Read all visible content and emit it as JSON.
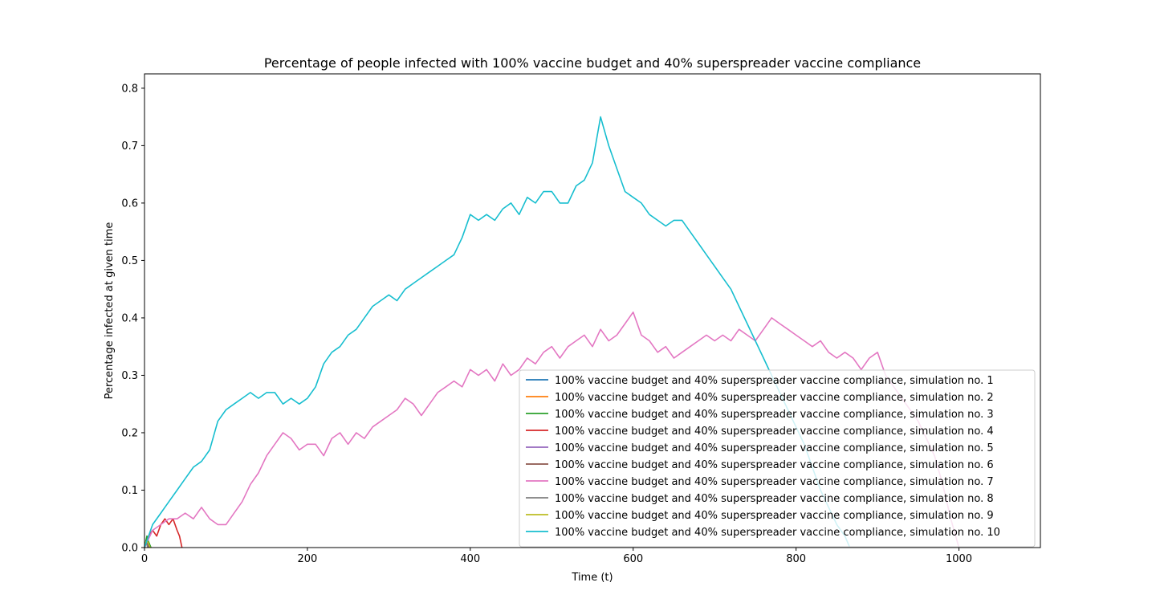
{
  "chart_data": {
    "type": "line",
    "title": "Percentage of people infected with 100% vaccine budget and 40% superspreader vaccine compliance",
    "xlabel": "Time (t)",
    "ylabel": "Percentage infected at given time",
    "xlim": [
      0,
      1100
    ],
    "ylim": [
      0,
      0.825
    ],
    "xticks": [
      "0",
      "200",
      "400",
      "600",
      "800",
      "1000"
    ],
    "xtick_values": [
      0,
      200,
      400,
      600,
      800,
      1000
    ],
    "yticks": [
      "0.0",
      "0.1",
      "0.2",
      "0.3",
      "0.4",
      "0.5",
      "0.6",
      "0.7",
      "0.8"
    ],
    "ytick_values": [
      0,
      0.1,
      0.2,
      0.3,
      0.4,
      0.5,
      0.6,
      0.7,
      0.8
    ],
    "grid": false,
    "legend_position": "lower-right",
    "series": [
      {
        "name": "100% vaccine budget and 40% superspreader vaccine compliance, simulation no. 1",
        "color": "#1f77b4",
        "x": [
          0,
          2,
          4,
          6
        ],
        "y": [
          0.0,
          0.01,
          0.01,
          0.0
        ]
      },
      {
        "name": "100% vaccine budget and 40% superspreader vaccine compliance, simulation no. 2",
        "color": "#ff7f0e",
        "x": [
          0,
          2,
          4,
          5
        ],
        "y": [
          0.0,
          0.01,
          0.01,
          0.0
        ]
      },
      {
        "name": "100% vaccine budget and 40% superspreader vaccine compliance, simulation no. 3",
        "color": "#2ca02c",
        "x": [
          0,
          3,
          5,
          8
        ],
        "y": [
          0.0,
          0.02,
          0.01,
          0.0
        ]
      },
      {
        "name": "100% vaccine budget and 40% superspreader vaccine compliance, simulation no. 4",
        "color": "#d62728",
        "x": [
          0,
          5,
          10,
          15,
          20,
          25,
          30,
          35,
          40,
          43,
          46
        ],
        "y": [
          0.0,
          0.02,
          0.03,
          0.02,
          0.04,
          0.05,
          0.04,
          0.05,
          0.03,
          0.02,
          0.0
        ]
      },
      {
        "name": "100% vaccine budget and 40% superspreader vaccine compliance, simulation no. 5",
        "color": "#9467bd",
        "x": [
          0,
          2,
          4
        ],
        "y": [
          0.0,
          0.01,
          0.0
        ]
      },
      {
        "name": "100% vaccine budget and 40% superspreader vaccine compliance, simulation no. 6",
        "color": "#8c564b",
        "x": [
          0,
          3,
          6
        ],
        "y": [
          0.0,
          0.01,
          0.0
        ]
      },
      {
        "name": "100% vaccine budget and 40% superspreader vaccine compliance, simulation no. 7",
        "color": "#e377c2",
        "x": [
          0,
          10,
          20,
          30,
          40,
          50,
          60,
          70,
          80,
          90,
          100,
          110,
          120,
          130,
          140,
          150,
          160,
          170,
          180,
          190,
          200,
          210,
          220,
          230,
          240,
          250,
          260,
          270,
          280,
          290,
          300,
          310,
          320,
          330,
          340,
          350,
          360,
          370,
          380,
          390,
          400,
          410,
          420,
          430,
          440,
          450,
          460,
          470,
          480,
          490,
          500,
          510,
          520,
          530,
          540,
          550,
          560,
          570,
          580,
          590,
          600,
          610,
          620,
          630,
          640,
          650,
          660,
          670,
          680,
          690,
          700,
          710,
          720,
          730,
          740,
          750,
          760,
          770,
          780,
          790,
          800,
          810,
          820,
          830,
          840,
          850,
          860,
          870,
          880,
          890,
          900,
          910,
          920,
          930,
          940,
          950,
          960,
          970,
          980,
          990,
          1000
        ],
        "y": [
          0.0,
          0.03,
          0.04,
          0.05,
          0.05,
          0.06,
          0.05,
          0.07,
          0.05,
          0.04,
          0.04,
          0.06,
          0.08,
          0.11,
          0.13,
          0.16,
          0.18,
          0.2,
          0.19,
          0.17,
          0.18,
          0.18,
          0.16,
          0.19,
          0.2,
          0.18,
          0.2,
          0.19,
          0.21,
          0.22,
          0.23,
          0.24,
          0.26,
          0.25,
          0.23,
          0.25,
          0.27,
          0.28,
          0.29,
          0.28,
          0.31,
          0.3,
          0.31,
          0.29,
          0.32,
          0.3,
          0.31,
          0.33,
          0.32,
          0.34,
          0.35,
          0.33,
          0.35,
          0.36,
          0.37,
          0.35,
          0.38,
          0.36,
          0.37,
          0.39,
          0.41,
          0.37,
          0.36,
          0.34,
          0.35,
          0.33,
          0.34,
          0.35,
          0.36,
          0.37,
          0.36,
          0.37,
          0.36,
          0.38,
          0.37,
          0.36,
          0.38,
          0.4,
          0.39,
          0.38,
          0.37,
          0.36,
          0.35,
          0.36,
          0.34,
          0.33,
          0.34,
          0.33,
          0.31,
          0.33,
          0.34,
          0.3,
          0.28,
          0.26,
          0.24,
          0.22,
          0.19,
          0.16,
          0.11,
          0.05,
          0.0
        ]
      },
      {
        "name": "100% vaccine budget and 40% superspreader vaccine compliance, simulation no. 8",
        "color": "#7f7f7f",
        "x": [
          0,
          2,
          4
        ],
        "y": [
          0.0,
          0.01,
          0.0
        ]
      },
      {
        "name": "100% vaccine budget and 40% superspreader vaccine compliance, simulation no. 9",
        "color": "#bcbd22",
        "x": [
          0,
          2,
          4,
          7
        ],
        "y": [
          0.0,
          0.01,
          0.01,
          0.0
        ]
      },
      {
        "name": "100% vaccine budget and 40% superspreader vaccine compliance, simulation no. 10",
        "color": "#17becf",
        "x": [
          0,
          10,
          20,
          30,
          40,
          50,
          60,
          70,
          80,
          90,
          100,
          110,
          120,
          130,
          140,
          150,
          160,
          170,
          180,
          190,
          200,
          210,
          220,
          230,
          240,
          250,
          260,
          270,
          280,
          290,
          300,
          310,
          320,
          330,
          340,
          350,
          360,
          370,
          380,
          390,
          400,
          410,
          420,
          430,
          440,
          450,
          460,
          470,
          480,
          490,
          500,
          510,
          520,
          530,
          540,
          550,
          560,
          570,
          580,
          590,
          600,
          610,
          620,
          630,
          640,
          650,
          660,
          670,
          680,
          690,
          700,
          710,
          720,
          730,
          740,
          750,
          760,
          770,
          780,
          790,
          800,
          810,
          820,
          830,
          840,
          850,
          860,
          866
        ],
        "y": [
          0.0,
          0.04,
          0.06,
          0.08,
          0.1,
          0.12,
          0.14,
          0.15,
          0.17,
          0.22,
          0.24,
          0.25,
          0.26,
          0.27,
          0.26,
          0.27,
          0.27,
          0.25,
          0.26,
          0.25,
          0.26,
          0.28,
          0.32,
          0.34,
          0.35,
          0.37,
          0.38,
          0.4,
          0.42,
          0.43,
          0.44,
          0.43,
          0.45,
          0.46,
          0.47,
          0.48,
          0.49,
          0.5,
          0.51,
          0.54,
          0.58,
          0.57,
          0.58,
          0.57,
          0.59,
          0.6,
          0.58,
          0.61,
          0.6,
          0.62,
          0.62,
          0.6,
          0.6,
          0.63,
          0.64,
          0.67,
          0.75,
          0.7,
          0.66,
          0.62,
          0.61,
          0.6,
          0.58,
          0.57,
          0.56,
          0.57,
          0.57,
          0.55,
          0.53,
          0.51,
          0.49,
          0.47,
          0.45,
          0.42,
          0.39,
          0.36,
          0.33,
          0.3,
          0.27,
          0.24,
          0.21,
          0.18,
          0.14,
          0.1,
          0.07,
          0.04,
          0.02,
          0.0
        ]
      }
    ]
  }
}
